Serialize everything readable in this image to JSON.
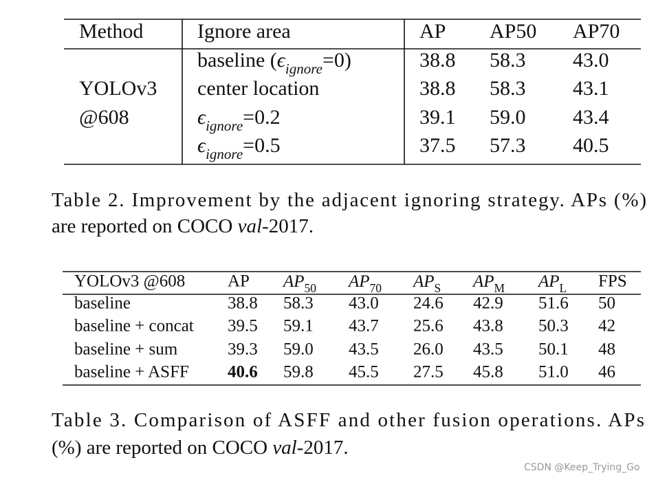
{
  "table2": {
    "header": [
      "Method",
      "Ignore area",
      "AP",
      "AP50",
      "AP70"
    ],
    "method": [
      "YOLOv3",
      "@608"
    ],
    "rows": [
      [
        {
          "prefix": "baseline (",
          "symbol": "ϵ",
          "subscript": "ignore",
          "suffix": "=0)"
        },
        "38.8",
        "58.3",
        "43.0"
      ],
      [
        "center location",
        "38.8",
        "58.3",
        "43.1"
      ],
      [
        {
          "symbol": "ϵ",
          "subscript": "ignore",
          "suffix": "=0.2"
        },
        "39.1",
        "59.0",
        "43.4"
      ],
      [
        {
          "symbol": "ϵ",
          "subscript": "ignore",
          "suffix": "=0.5"
        },
        "37.5",
        "57.3",
        "40.5"
      ]
    ],
    "caption": [
      {
        "text": "Table 2. Improvement by the adjacent ignoring strategy. APs (%)"
      },
      {
        "text": "are reported on COCO ",
        "italic": "val",
        "after": "-2017."
      }
    ]
  },
  "table3": {
    "header": [
      "YOLOv3 @608",
      "AP",
      {
        "base": "AP",
        "sub": "50"
      },
      {
        "base": "AP",
        "sub": "70"
      },
      {
        "base": "AP",
        "sub": "S"
      },
      {
        "base": "AP",
        "sub": "M"
      },
      {
        "base": "AP",
        "sub": "L"
      },
      "FPS"
    ],
    "rows": [
      [
        "baseline",
        "38.8",
        "58.3",
        "43.0",
        "24.6",
        "42.9",
        "51.6",
        "50"
      ],
      [
        "baseline + concat",
        "39.5",
        "59.1",
        "43.7",
        "25.6",
        "43.8",
        "50.3",
        "42"
      ],
      [
        "baseline + sum",
        "39.3",
        "59.0",
        "43.5",
        "26.0",
        "43.5",
        "50.1",
        "48"
      ],
      [
        "baseline + ASFF",
        "40.6",
        "59.8",
        "45.5",
        "27.5",
        "45.8",
        "51.0",
        "46"
      ]
    ],
    "caption": [
      {
        "text": "Table 3. Comparison of ASFF and other fusion operations.  APs"
      },
      {
        "text": "(%) are reported on COCO ",
        "italic": "val",
        "after": "-2017."
      }
    ]
  },
  "watermark": "CSDN @Keep_Trying_Go"
}
